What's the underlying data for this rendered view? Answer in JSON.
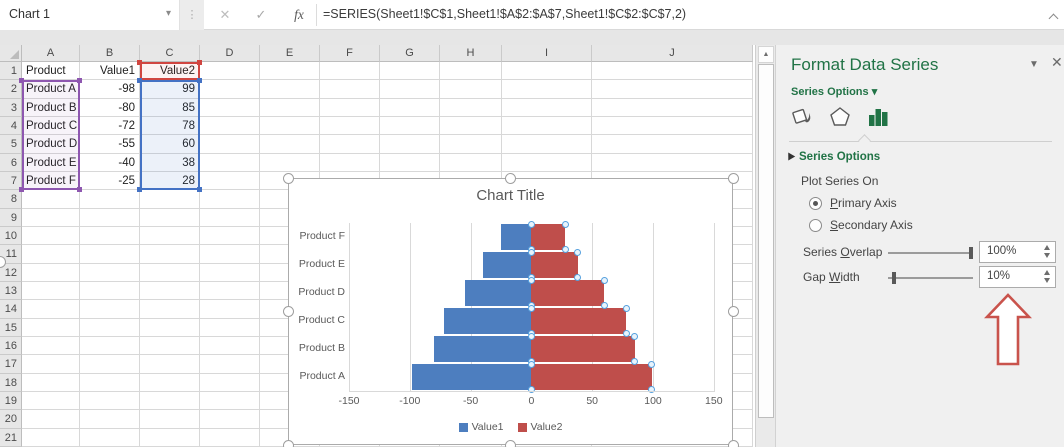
{
  "formula_bar": {
    "name_box": "Chart 1",
    "formula": "=SERIES(Sheet1!$C$1,Sheet1!$A$2:$A$7,Sheet1!$C$2:$C$7,2)",
    "fx_label": "fx"
  },
  "icons": {
    "name_box_dropdown": "▾",
    "separator_dots": "⋮",
    "cancel": "✕",
    "enter": "✓",
    "panel_dropdown": "▼",
    "panel_close": "✕",
    "scroll_up": "▲"
  },
  "grid": {
    "column_headers": [
      "A",
      "B",
      "C",
      "D",
      "E",
      "F",
      "G",
      "H",
      "I",
      "J"
    ],
    "row_numbers": [
      "1",
      "2",
      "3",
      "4",
      "5",
      "6",
      "7",
      "8",
      "9",
      "10",
      "11",
      "12",
      "13",
      "14",
      "15",
      "16",
      "17",
      "18",
      "19",
      "20",
      "21"
    ],
    "rows": [
      [
        "Product",
        "Value1",
        "Value2"
      ],
      [
        "Product A",
        "-98",
        "99"
      ],
      [
        "Product B",
        "-80",
        "85"
      ],
      [
        "Product C",
        "-72",
        "78"
      ],
      [
        "Product D",
        "-55",
        "60"
      ],
      [
        "Product E",
        "-40",
        "38"
      ],
      [
        "Product F",
        "-25",
        "28"
      ]
    ]
  },
  "chart_data": {
    "type": "bar",
    "orientation": "horizontal",
    "title": "Chart Title",
    "categories": [
      "Product A",
      "Product B",
      "Product C",
      "Product D",
      "Product E",
      "Product F"
    ],
    "series": [
      {
        "name": "Value1",
        "color": "#4d7ebf",
        "values": [
          -98,
          -80,
          -72,
          -55,
          -40,
          -25
        ]
      },
      {
        "name": "Value2",
        "color": "#bf4e4b",
        "values": [
          99,
          85,
          78,
          60,
          38,
          28
        ]
      }
    ],
    "x_ticks": [
      -150,
      -100,
      -50,
      0,
      50,
      100,
      150
    ],
    "xlim": [
      -150,
      150
    ],
    "grid": true,
    "legend_position": "bottom",
    "selected_series": "Value2"
  },
  "panel": {
    "title": "Format Data Series",
    "series_options_dropdown": "Series Options ▾",
    "tabs": [
      "fill-line",
      "effects",
      "series-options"
    ],
    "section_header": "Series Options",
    "plot_series_on": "Plot Series On",
    "radios": [
      {
        "pre": "",
        "u": "P",
        "post": "rimary Axis",
        "selected": true
      },
      {
        "pre": "",
        "u": "S",
        "post": "econdary Axis",
        "selected": false
      }
    ],
    "sliders": [
      {
        "pre": "Series ",
        "u": "O",
        "post": "verlap",
        "value": "100%",
        "percent": 100
      },
      {
        "pre": "Gap ",
        "u": "W",
        "post": "idth",
        "value": "10%",
        "percent": 10
      }
    ]
  },
  "colors": {
    "accent_green": "#217346",
    "series1": "#4d7ebf",
    "series2": "#bf4e4b",
    "range_categories": "#8e57b0",
    "range_name": "#d04540",
    "range_values": "#4472c4",
    "annotation_arrow": "#c9534c"
  }
}
